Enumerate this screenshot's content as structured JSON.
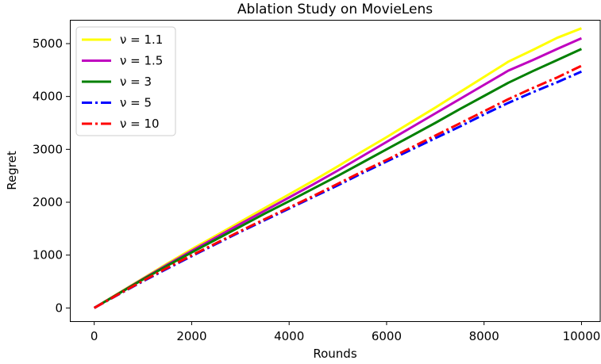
{
  "chart_data": {
    "type": "line",
    "title": "Ablation Study on MovieLens",
    "xlabel": "Rounds",
    "ylabel": "Regret",
    "xlim": [
      -500,
      10400
    ],
    "ylim": [
      -250,
      5450
    ],
    "xticks": [
      0,
      2000,
      4000,
      6000,
      8000,
      10000
    ],
    "yticks": [
      0,
      1000,
      2000,
      3000,
      4000,
      5000
    ],
    "grid": false,
    "legend_position": "top-left",
    "x": [
      0,
      500,
      1000,
      1500,
      2000,
      2500,
      3000,
      3500,
      4000,
      4500,
      5000,
      5500,
      6000,
      6500,
      7000,
      7500,
      8000,
      8500,
      9000,
      9500,
      10000
    ],
    "series": [
      {
        "name": "ν = 1.1",
        "color": "#ffff00",
        "dash": "solid",
        "values": [
          0,
          280,
          560,
          840,
          1110,
          1370,
          1630,
          1890,
          2150,
          2410,
          2680,
          2960,
          3230,
          3510,
          3790,
          4080,
          4370,
          4660,
          4880,
          5110,
          5290
        ]
      },
      {
        "name": "ν = 1.5",
        "color": "#bf00bf",
        "dash": "solid",
        "values": [
          0,
          275,
          550,
          820,
          1080,
          1335,
          1590,
          1840,
          2090,
          2340,
          2600,
          2870,
          3140,
          3410,
          3680,
          3950,
          4220,
          4490,
          4690,
          4900,
          5100
        ]
      },
      {
        "name": "ν = 3",
        "color": "#008000",
        "dash": "solid",
        "values": [
          0,
          270,
          540,
          800,
          1050,
          1295,
          1540,
          1785,
          2020,
          2260,
          2500,
          2750,
          3000,
          3250,
          3500,
          3760,
          4010,
          4260,
          4480,
          4690,
          4900
        ]
      },
      {
        "name": "ν = 5",
        "color": "#0000ff",
        "dash": "dashdot",
        "values": [
          0,
          255,
          505,
          745,
          980,
          1210,
          1440,
          1660,
          1880,
          2100,
          2320,
          2550,
          2770,
          2990,
          3210,
          3430,
          3660,
          3880,
          4080,
          4270,
          4470
        ]
      },
      {
        "name": "ν = 10",
        "color": "#ff0000",
        "dash": "dashdot",
        "values": [
          0,
          260,
          515,
          760,
          995,
          1225,
          1455,
          1680,
          1900,
          2120,
          2350,
          2580,
          2800,
          3030,
          3260,
          3490,
          3720,
          3950,
          4160,
          4360,
          4580
        ]
      }
    ]
  }
}
